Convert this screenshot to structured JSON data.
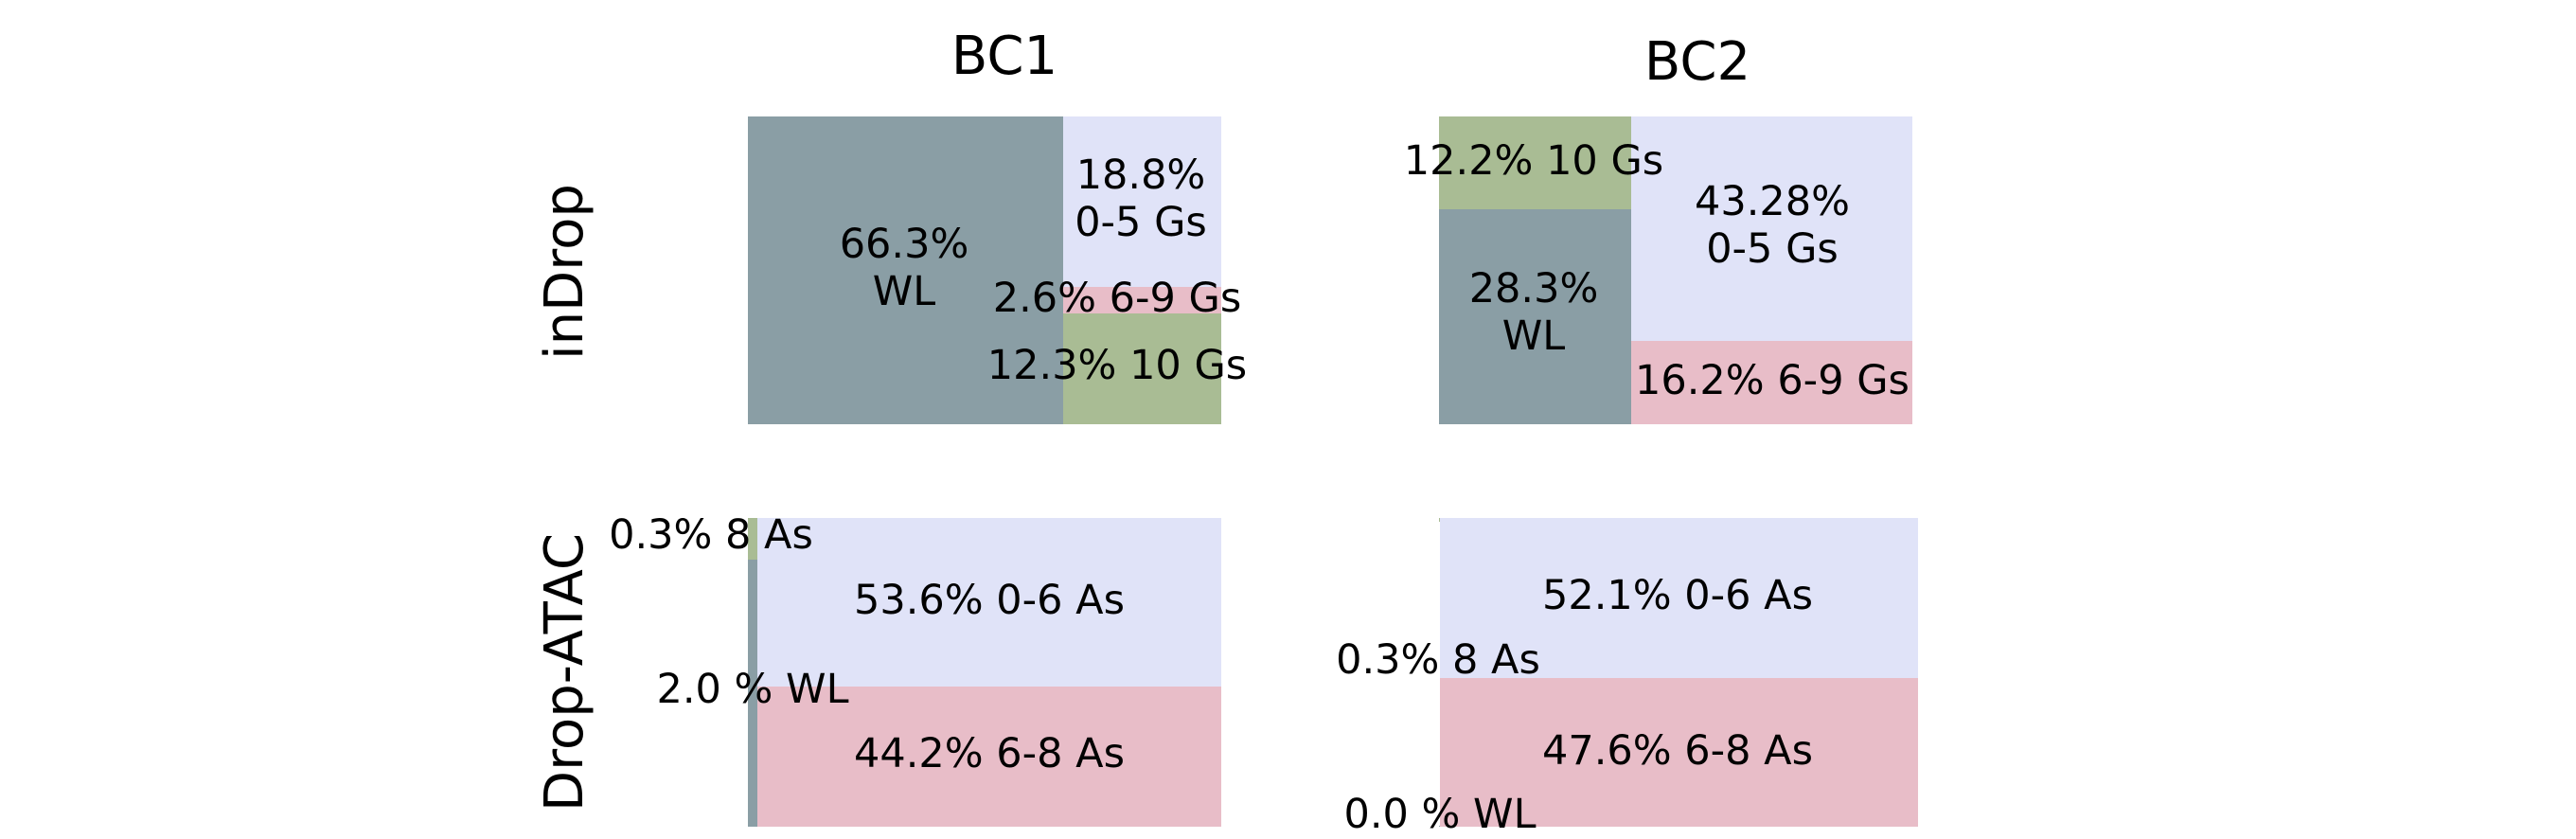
{
  "colors": {
    "WL": "#8a9ea5",
    "0-5 Gs": "#e0e3f8",
    "6-9 Gs": "#e8bdc8",
    "10 Gs": "#a9bc94",
    "0-6 As": "#e0e3f8",
    "6-8 As": "#e8bdc8",
    "8 As": "#a9bc94"
  },
  "column_titles": [
    "BC1",
    "BC2"
  ],
  "row_titles": [
    "inDrop",
    "Drop-ATAC"
  ],
  "chart_data": [
    {
      "type": "treemap",
      "row": "inDrop",
      "column": "BC1",
      "cells": [
        {
          "category": "WL",
          "percent": 66.3,
          "label": "66.3%\nWL"
        },
        {
          "category": "0-5 Gs",
          "percent": 18.8,
          "label": "18.8%\n0-5 Gs"
        },
        {
          "category": "6-9 Gs",
          "percent": 2.6,
          "label": "2.6% 6-9 Gs"
        },
        {
          "category": "10 Gs",
          "percent": 12.3,
          "label": "12.3% 10 Gs"
        }
      ]
    },
    {
      "type": "treemap",
      "row": "inDrop",
      "column": "BC2",
      "cells": [
        {
          "category": "10 Gs",
          "percent": 12.2,
          "label": "12.2% 10 Gs"
        },
        {
          "category": "WL",
          "percent": 28.3,
          "label": "28.3%\nWL"
        },
        {
          "category": "0-5 Gs",
          "percent": 43.28,
          "label": "43.28%\n0-5 Gs"
        },
        {
          "category": "6-9 Gs",
          "percent": 16.2,
          "label": "16.2% 6-9 Gs"
        }
      ]
    },
    {
      "type": "treemap",
      "row": "Drop-ATAC",
      "column": "BC1",
      "cells": [
        {
          "category": "8 As",
          "percent": 0.3,
          "label": "0.3% 8 As"
        },
        {
          "category": "WL",
          "percent": 2.0,
          "label": "2.0 % WL"
        },
        {
          "category": "0-6 As",
          "percent": 53.6,
          "label": "53.6% 0-6 As"
        },
        {
          "category": "6-8 As",
          "percent": 44.2,
          "label": "44.2% 6-8 As"
        }
      ]
    },
    {
      "type": "treemap",
      "row": "Drop-ATAC",
      "column": "BC2",
      "cells": [
        {
          "category": "8 As",
          "percent": 0.3,
          "label": "0.3% 8 As"
        },
        {
          "category": "0-6 As",
          "percent": 52.1,
          "label": "52.1% 0-6 As"
        },
        {
          "category": "6-8 As",
          "percent": 47.6,
          "label": "47.6% 6-8 As"
        },
        {
          "category": "WL",
          "percent": 0.0,
          "label": "0.0 % WL"
        }
      ]
    }
  ]
}
